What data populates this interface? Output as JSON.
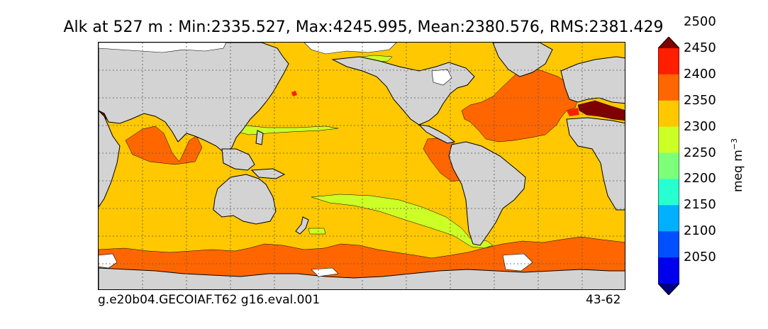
{
  "title": "Alk at 527 m : Min:2335.527, Max:4245.995, Mean:2380.576, RMS:2381.429",
  "footer": {
    "case_name": "g.e20b04.GECOIAF.T62 g16.eval.001",
    "years": "43-62"
  },
  "colorbar": {
    "unit_label": "meq m",
    "unit_exponent": "−3",
    "levels": [
      "2050",
      "2100",
      "2150",
      "2200",
      "2250",
      "2300",
      "2350",
      "2400",
      "2450",
      "2500"
    ],
    "bins": [
      {
        "color": "#7f0000"
      },
      {
        "color": "#ff1e00"
      },
      {
        "color": "#ff6600"
      },
      {
        "color": "#ffc800"
      },
      {
        "color": "#ccff26"
      },
      {
        "color": "#7dff7a"
      },
      {
        "color": "#26ffd2"
      },
      {
        "color": "#00b0ff"
      },
      {
        "color": "#0050ff"
      },
      {
        "color": "#0000ed"
      },
      {
        "color": "#00007f"
      }
    ]
  },
  "map_colors": {
    "land": "#d3d3d3",
    "ice_no_data": "#ffffff",
    "ocean_2350_2400": "#ffc800",
    "band_2400_2450": "#ff6600",
    "band_2300_2350": "#ccff26",
    "band_2450_2500": "#ff1e00",
    "band_above_2500": "#7f0000"
  }
}
